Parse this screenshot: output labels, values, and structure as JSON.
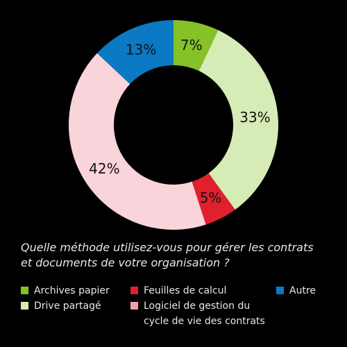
{
  "chart_data": {
    "type": "pie",
    "donut": true,
    "slices": [
      {
        "label": "Archives papier",
        "value": 7,
        "display": "7%",
        "color": "#84c226"
      },
      {
        "label": "Drive partagé",
        "value": 33,
        "display": "33%",
        "color": "#d6ebb6"
      },
      {
        "label": "Feuilles de calcul",
        "value": 5,
        "display": "5%",
        "color": "#e0212d"
      },
      {
        "label": "Logiciel de gestion du cycle de vie des contrats",
        "value": 42,
        "display": "42%",
        "color": "#f9d4da"
      },
      {
        "label": "Autre",
        "value": 13,
        "display": "13%",
        "color": "#0b79c4"
      }
    ],
    "title": "Quelle méthode utilisez-vous pour gérer les contrats et documents de votre organisation ?",
    "legend_position": "bottom"
  },
  "question": {
    "line1": "Quelle méthode utilisez-vous pour gérer les contrats",
    "line2": "et documents de votre organisation ?"
  },
  "legend": {
    "archives": "Archives papier",
    "drive": "Drive partagé",
    "feuilles": "Feuilles de calcul",
    "logiciel_line1": "Logiciel de gestion du",
    "logiciel_line2": "cycle de vie des contrats",
    "autre": "Autre"
  },
  "colors": {
    "background": "#000000",
    "text": "#e8e8e8"
  }
}
